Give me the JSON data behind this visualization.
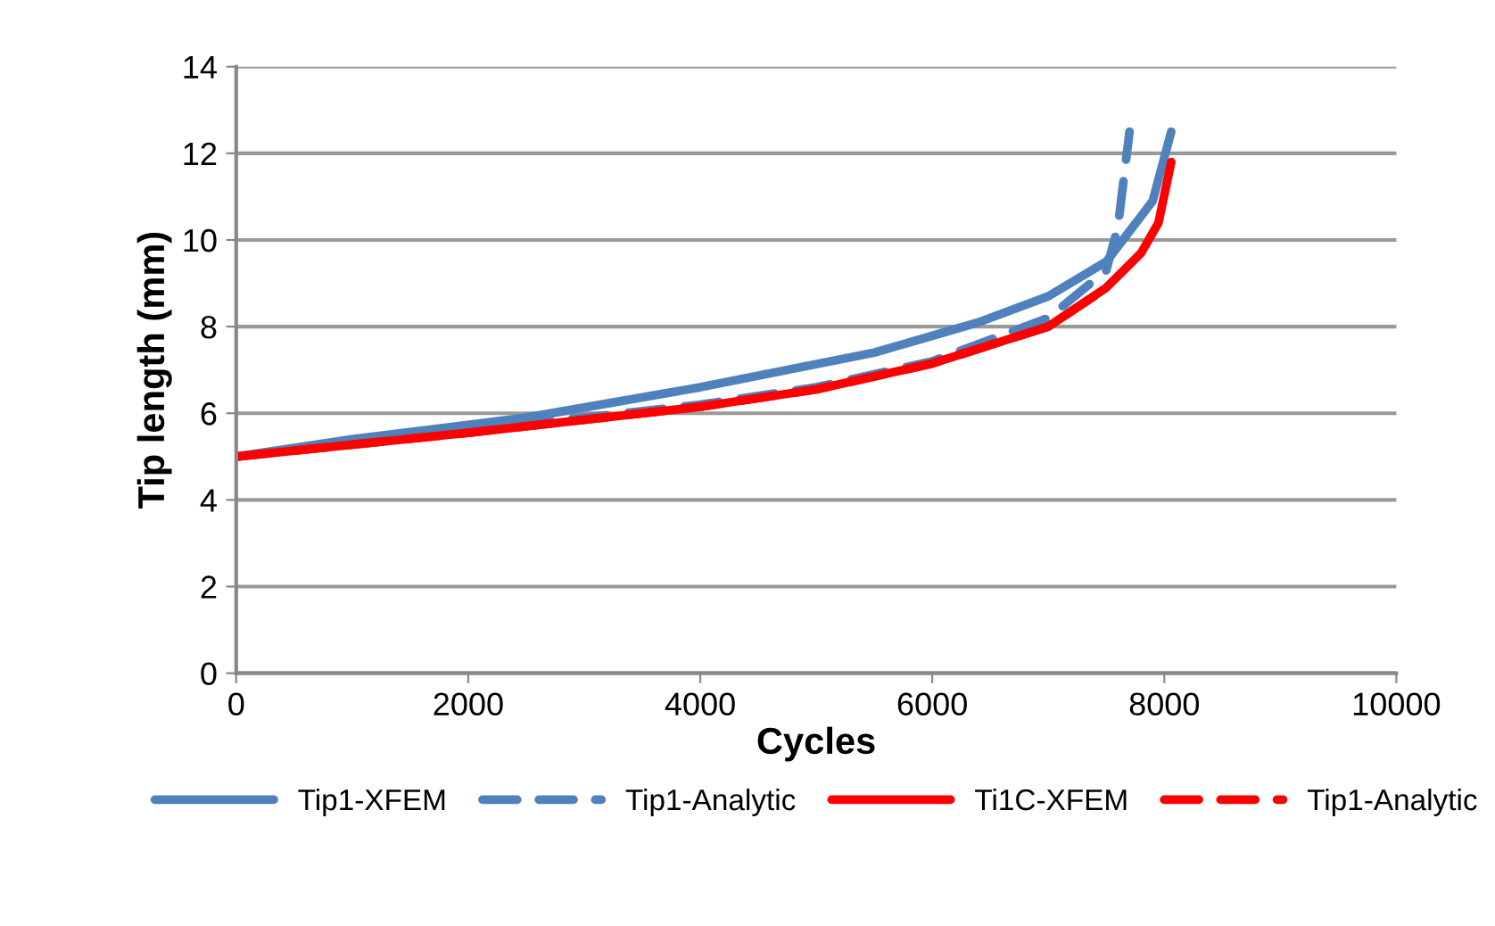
{
  "chart_data": {
    "type": "line",
    "xlabel": "Cycles",
    "ylabel": "Tip length (mm)",
    "xlim": [
      0,
      10000
    ],
    "xticks": [
      0,
      2000,
      4000,
      6000,
      8000,
      10000
    ],
    "ylim": [
      0,
      14
    ],
    "yticks": [
      0,
      2,
      4,
      6,
      8,
      10,
      12,
      14
    ],
    "grid": "y",
    "legend": "bottom",
    "marker": "none",
    "series": [
      {
        "name": "Tip1-XFEM",
        "color": "#4f81bd",
        "line_style": "solid",
        "x": [
          0,
          1000,
          2500,
          4000,
          5500,
          6400,
          7000,
          7500,
          7900,
          8060
        ],
        "values": [
          5,
          5.4,
          5.9,
          6.6,
          7.4,
          8.1,
          8.7,
          9.5,
          10.9,
          12.5
        ]
      },
      {
        "name": "Tip1-Analytic",
        "color": "#4f81bd",
        "line_style": "dashed",
        "x": [
          0,
          2000,
          4000,
          5000,
          6000,
          7000,
          7500,
          7600,
          7700
        ],
        "values": [
          5,
          5.6,
          6.2,
          6.6,
          7.2,
          8.2,
          9.3,
          10.3,
          12.5
        ]
      },
      {
        "name": "Ti1C-XFEM",
        "color": "#ff0000",
        "line_style": "solid",
        "x": [
          0,
          2000,
          4000,
          5000,
          6000,
          7000,
          7500,
          7800,
          7950,
          8060
        ],
        "values": [
          5,
          5.55,
          6.15,
          6.55,
          7.15,
          8.0,
          8.9,
          9.7,
          10.4,
          11.8
        ]
      },
      {
        "name": "Tip1-Analytic",
        "color": "#ff0000",
        "line_style": "dashed",
        "x": [
          0,
          2000,
          4000,
          5000,
          6000,
          7000,
          7450
        ],
        "values": [
          5,
          5.55,
          6.15,
          6.55,
          7.15,
          8.0,
          8.8
        ]
      }
    ]
  }
}
